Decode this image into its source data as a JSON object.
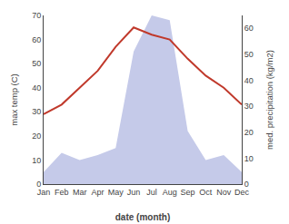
{
  "chart_data": {
    "type": "line",
    "categories": [
      "Jan",
      "Feb",
      "Mar",
      "Apr",
      "May",
      "Jun",
      "Jul",
      "Aug",
      "Sep",
      "Oct",
      "Nov",
      "Dec"
    ],
    "series": [
      {
        "type": "area",
        "color": "#c5cae9",
        "values": [
          5,
          13,
          10,
          12,
          15,
          55,
          70,
          68,
          22,
          10,
          12,
          5
        ]
      },
      {
        "type": "line",
        "color": "#c0392b",
        "values": [
          29,
          33,
          40,
          47,
          57,
          65,
          62,
          60,
          52,
          45,
          40,
          33
        ]
      }
    ],
    "x_label": "date (month)",
    "y_label": "max temp (C)",
    "y2_label": "med. precipitation (kg/m2)",
    "ylim": [
      0,
      70
    ],
    "yticks": [
      0,
      10,
      20,
      30,
      40,
      50,
      60,
      70
    ],
    "y2lim": [
      0,
      65
    ],
    "y2ticks": [
      0,
      10,
      20,
      30,
      40,
      50,
      60
    ],
    "grid": false
  }
}
